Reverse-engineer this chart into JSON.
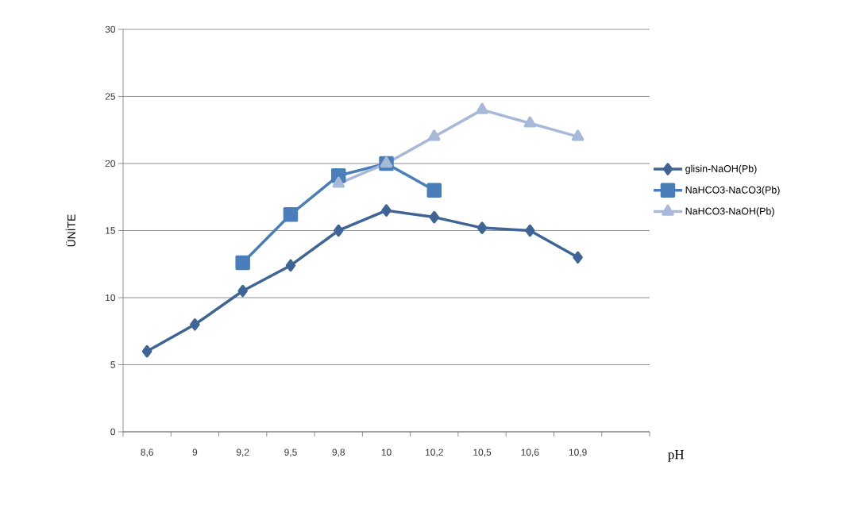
{
  "chart_data": {
    "type": "line",
    "xlabel": "pH",
    "ylabel": "ÜNİTE",
    "categories": [
      "8,6",
      "9",
      "9,2",
      "9,5",
      "9,8",
      "10",
      "10,2",
      "10,5",
      "10,6",
      "10,9",
      null
    ],
    "series": [
      {
        "name": "glisin-NaOH(Pb)",
        "color": "#3f6496",
        "marker": "diamond",
        "values": [
          6,
          8,
          10.5,
          12.4,
          15,
          16.5,
          16,
          15.2,
          15,
          13,
          null
        ]
      },
      {
        "name": "NaHCO3-NaCO3(Pb)",
        "color": "#4a7ebb",
        "marker": "square",
        "values": [
          null,
          null,
          12.6,
          16.2,
          19.1,
          20,
          18,
          null,
          null,
          null,
          null
        ]
      },
      {
        "name": "NaHCO3-NaOH(Pb)",
        "color": "#a7b9d9",
        "marker": "triangle",
        "values": [
          null,
          null,
          null,
          null,
          18.5,
          20,
          22,
          24,
          23,
          22,
          null
        ]
      }
    ],
    "ylim": [
      0,
      30
    ],
    "yticks": [
      0,
      5,
      10,
      15,
      20,
      25,
      30
    ],
    "grid": "y",
    "legend": "right",
    "line_style": "solid"
  }
}
